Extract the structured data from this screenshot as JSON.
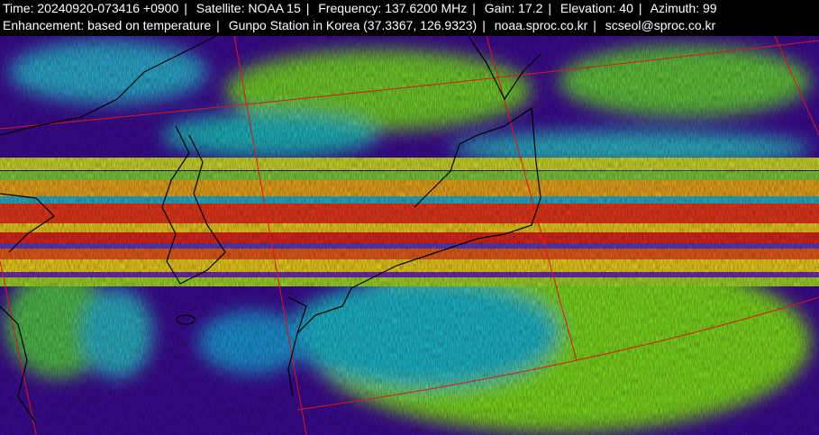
{
  "header": {
    "line1": [
      "Time: 20240920-073416 +0900",
      "Satellite: NOAA 15",
      "Frequency: 137.6200 MHz",
      "Gain: 17.2",
      "Elevation: 40",
      "Azimuth: 99"
    ],
    "line2": [
      "Enhancement: based on temperature",
      "Gunpo Station in Korea (37.3367, 126.9323)",
      "noaa.sproc.co.kr",
      "scseol@sproc.co.kr"
    ],
    "separator": "|"
  },
  "image": {
    "type": "NOAA APT satellite image, temperature enhanced",
    "colors": {
      "cold_clear": "#3b0a8f",
      "mid": "#7ad41e",
      "cyan": "#19b7c9",
      "warm": "#e8d21a",
      "hot": "#e0231a",
      "grid": "#d81818",
      "coast": "#000000"
    }
  }
}
